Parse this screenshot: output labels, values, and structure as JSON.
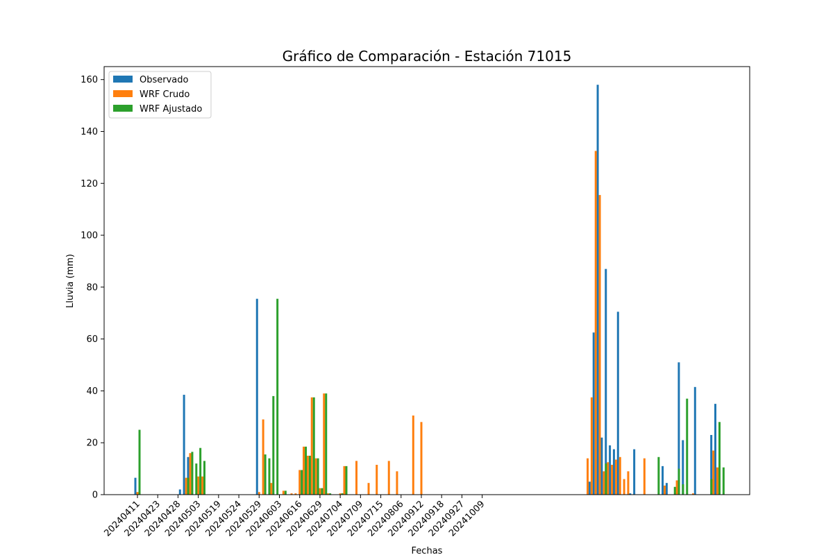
{
  "chart_data": {
    "type": "bar",
    "title": "Gráfico de Comparación - Estación 71015",
    "xlabel": "Fechas",
    "ylabel": "Lluvia (mm)",
    "ylim": [
      0,
      165
    ],
    "yticks": [
      0,
      20,
      40,
      60,
      80,
      100,
      120,
      140,
      160
    ],
    "tick_labels": [
      "20240411",
      "20240423",
      "20240428",
      "20240503",
      "20240519",
      "20240524",
      "20240529",
      "20240603",
      "20240616",
      "20240629",
      "20240704",
      "20240709",
      "20240715",
      "20240806",
      "20240912",
      "20240918",
      "20240927",
      "20241009"
    ],
    "tick_every": 5,
    "legend_position": "upper-left",
    "grid": false,
    "series": [
      {
        "name": "Observado",
        "color": "#1f77b4",
        "values": [
          6.5,
          0,
          0,
          0,
          0,
          0,
          0,
          0,
          0,
          0,
          0,
          2,
          38.5,
          14.5,
          0.5,
          0,
          1.5,
          4,
          0,
          0,
          0,
          0,
          0,
          0,
          0,
          0,
          0,
          0,
          0,
          0,
          75.5,
          0,
          0,
          0,
          0,
          0,
          0,
          0,
          0,
          0,
          0,
          0,
          0,
          0,
          0,
          0,
          0,
          0,
          0,
          0,
          0,
          0,
          0,
          0,
          0,
          0,
          0,
          0,
          0,
          0,
          0,
          0,
          0,
          0,
          0,
          0,
          0,
          0,
          0,
          0,
          0,
          0,
          0,
          0,
          0,
          0,
          0,
          0,
          0,
          0,
          0,
          0,
          0,
          0,
          0,
          0,
          0,
          0,
          0,
          0,
          0,
          0,
          0,
          0,
          0,
          0,
          0,
          0,
          0,
          0,
          0,
          0,
          0,
          0,
          0,
          0,
          0,
          0,
          0,
          0,
          0,
          0,
          5,
          62.5,
          158,
          22,
          87,
          19,
          17.5,
          70.5,
          0,
          0,
          0.5,
          17.5,
          0,
          0,
          0,
          0,
          0,
          0,
          11,
          4.5,
          0,
          0,
          51,
          21,
          0,
          0,
          41.5,
          0,
          0,
          0,
          23,
          35
        ]
      },
      {
        "name": "WRF Crudo",
        "color": "#ff7f0e",
        "values": [
          1,
          0,
          0,
          0,
          0,
          0,
          0,
          0,
          0,
          0,
          0,
          0,
          6.5,
          16,
          0,
          7,
          7,
          0,
          0,
          0,
          0,
          0,
          0,
          0,
          0,
          0,
          0,
          0,
          0,
          0,
          1,
          29,
          0,
          4.5,
          0,
          0,
          1.5,
          0,
          0.5,
          0.5,
          9.5,
          18.5,
          15,
          37.5,
          14,
          2.5,
          39,
          0.5,
          0,
          0,
          0.5,
          11,
          0,
          0,
          13,
          0,
          0,
          4.5,
          0,
          11.5,
          0,
          0,
          13,
          0,
          9,
          0,
          0,
          0,
          30.5,
          0,
          28,
          0,
          0,
          0,
          0,
          0,
          0,
          0,
          0,
          0,
          0,
          0,
          0,
          0,
          0,
          0,
          0,
          0,
          0,
          0,
          0,
          0,
          0,
          0,
          0,
          0,
          0,
          0,
          0,
          0,
          0,
          0,
          0,
          0,
          0,
          0,
          0,
          0,
          0,
          0,
          0,
          14,
          37.5,
          132.5,
          115.5,
          9,
          12.5,
          11.5,
          13.5,
          14.5,
          6,
          9,
          0,
          0,
          0,
          14,
          0,
          0,
          0,
          0,
          3.5,
          0,
          0,
          5.5,
          0,
          0,
          0,
          0.5,
          0,
          0,
          0,
          0,
          17,
          10.5
        ]
      },
      {
        "name": "WRF Ajustado",
        "color": "#2ca02c",
        "values": [
          25,
          0,
          0,
          0,
          0,
          0,
          0,
          0,
          0,
          0,
          0,
          0,
          6.5,
          16.5,
          12,
          18,
          13,
          0,
          0,
          0,
          0,
          0,
          0,
          0,
          0,
          0,
          0,
          0,
          0,
          0,
          0,
          15.5,
          14,
          38,
          75.5,
          0,
          1.5,
          0,
          0,
          0,
          9.5,
          18.5,
          15,
          37.5,
          14,
          2.5,
          39,
          0.5,
          0,
          0,
          0.5,
          11,
          0,
          0,
          0,
          0,
          0,
          0,
          0,
          0,
          0,
          0,
          0,
          0,
          0,
          0,
          0,
          0,
          0,
          0,
          0,
          0,
          0,
          0,
          0,
          0,
          0,
          0,
          0,
          0,
          0,
          0,
          0,
          0,
          0,
          0,
          0,
          0,
          0,
          0,
          0,
          0,
          0,
          0,
          0,
          0,
          0,
          0,
          0,
          0,
          0,
          0,
          0,
          0,
          0,
          0,
          0,
          0,
          0,
          0,
          0,
          0,
          0,
          0,
          0,
          12,
          0,
          0,
          0,
          0,
          0,
          0,
          0,
          0,
          0,
          0,
          0,
          0,
          14.5,
          0,
          0,
          0,
          3,
          10,
          4,
          37,
          0,
          0,
          0,
          0,
          0,
          6,
          0,
          28,
          10.5
        ]
      }
    ]
  }
}
